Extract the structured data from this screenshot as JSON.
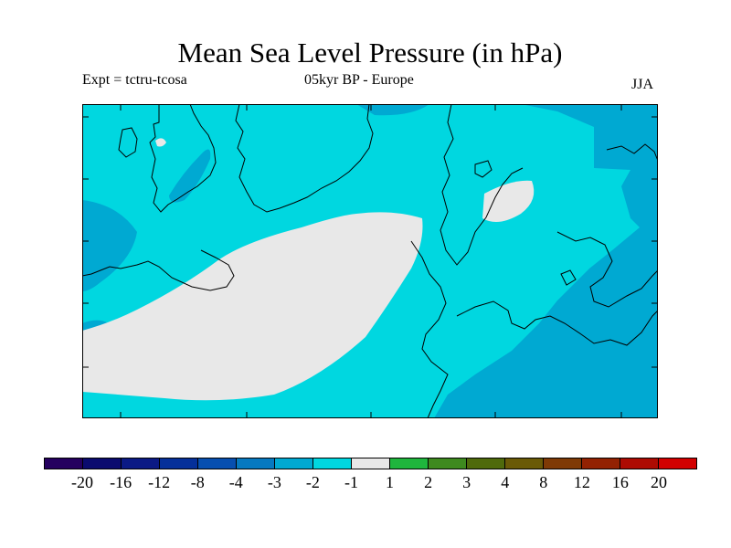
{
  "title": "Mean Sea Level Pressure (in hPa)",
  "experiment_label": "Expt = tctru-tcosa",
  "period_label": "05kyr BP - Europe",
  "season_label": "JJA",
  "colors": {
    "background": "#00d7e0",
    "neutral": "#e8e8e8",
    "light_negative": "#00a9d2",
    "outline": "#000000"
  },
  "colorbar": {
    "colors": [
      "#25005f",
      "#0b0b6f",
      "#0b1a85",
      "#05309a",
      "#074fb0",
      "#0679c0",
      "#00a9d2",
      "#00d7e0",
      "#e8e8e8",
      "#1fb63d",
      "#3e8a1f",
      "#4f6a0c",
      "#6a5a07",
      "#7f3a05",
      "#932202",
      "#ad0b03",
      "#d20000"
    ],
    "labels": [
      "-20",
      "-16",
      "-12",
      "-8",
      "-4",
      "-3",
      "-2",
      "-1",
      "1",
      "2",
      "3",
      "4",
      "8",
      "12",
      "16",
      "20"
    ]
  }
}
